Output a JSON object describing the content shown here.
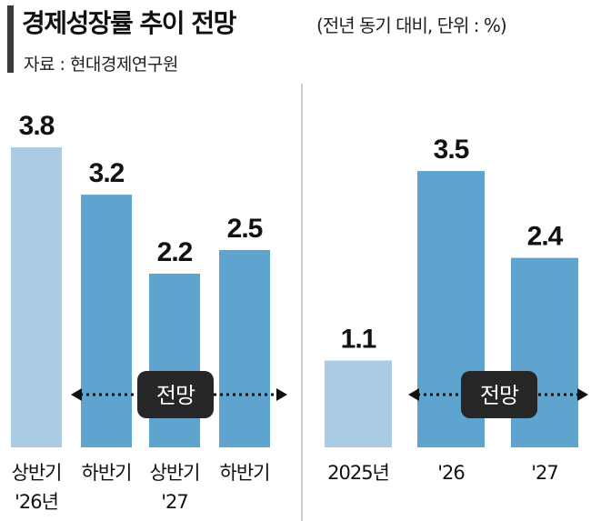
{
  "header": {
    "title": "경제성장률 추이 전망",
    "subtitle": "(전년 동기 대비, 단위 : %)",
    "source": "자료 : 현대경제연구원"
  },
  "colors": {
    "actual": "#a9cbe4",
    "forecast": "#5fa3cf",
    "badge": "#262626",
    "arrow": "#111111"
  },
  "chart_data": [
    {
      "type": "bar",
      "categories": [
        [
          "상반기",
          "'26년"
        ],
        [
          "하반기",
          ""
        ],
        [
          "상반기",
          "'27"
        ],
        [
          "하반기",
          ""
        ]
      ],
      "values": [
        3.8,
        3.2,
        2.2,
        2.5
      ],
      "value_labels": [
        "3.8",
        "3.2",
        "2.2",
        "2.5"
      ],
      "bar_kind": [
        "actual",
        "forecast",
        "forecast",
        "forecast"
      ],
      "annotation": "전망",
      "ylim": [
        0,
        4.1
      ]
    },
    {
      "type": "bar",
      "categories": [
        [
          "2025년"
        ],
        [
          "'26"
        ],
        [
          "'27"
        ]
      ],
      "values": [
        1.1,
        3.5,
        2.4
      ],
      "value_labels": [
        "1.1",
        "3.5",
        "2.4"
      ],
      "bar_kind": [
        "actual",
        "forecast",
        "forecast"
      ],
      "annotation": "전망",
      "ylim": [
        0,
        4.1
      ]
    }
  ]
}
